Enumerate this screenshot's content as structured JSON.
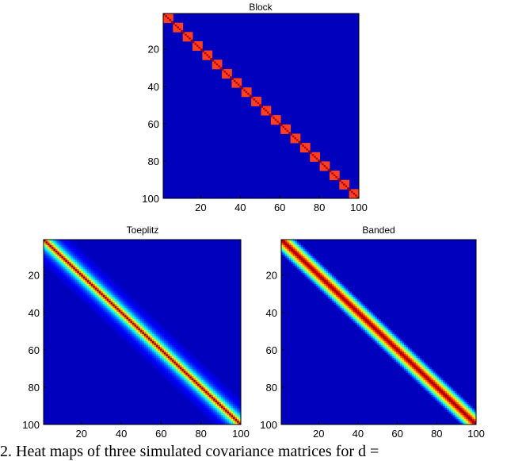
{
  "caption": "2. Heat maps of three simulated covariance matrices for d =",
  "colors": {
    "background": "#00008f",
    "frame": "#000000"
  },
  "chart_data": [
    {
      "type": "heatmap",
      "title": "Block",
      "pattern": "block",
      "size": 100,
      "block_size": 5,
      "within_block_value": 0.5,
      "diagonal_value": 1.0,
      "xlim": [
        1,
        100
      ],
      "ylim": [
        1,
        100
      ],
      "xticks": [
        20,
        40,
        60,
        80,
        100
      ],
      "yticks": [
        20,
        40,
        60,
        80,
        100
      ],
      "colormap": "jet",
      "grid": false
    },
    {
      "type": "heatmap",
      "title": "Toeplitz",
      "pattern": "toeplitz",
      "size": 100,
      "rho": 0.75,
      "xlim": [
        1,
        100
      ],
      "ylim": [
        1,
        100
      ],
      "xticks": [
        20,
        40,
        60,
        80,
        100
      ],
      "yticks": [
        20,
        40,
        60,
        80,
        100
      ],
      "colormap": "jet",
      "grid": false
    },
    {
      "type": "heatmap",
      "title": "Banded",
      "pattern": "banded",
      "size": 100,
      "bandwidth": 8,
      "xlim": [
        1,
        100
      ],
      "ylim": [
        1,
        100
      ],
      "xticks": [
        20,
        40,
        60,
        80,
        100
      ],
      "yticks": [
        20,
        40,
        60,
        80,
        100
      ],
      "colormap": "jet",
      "grid": false
    }
  ]
}
